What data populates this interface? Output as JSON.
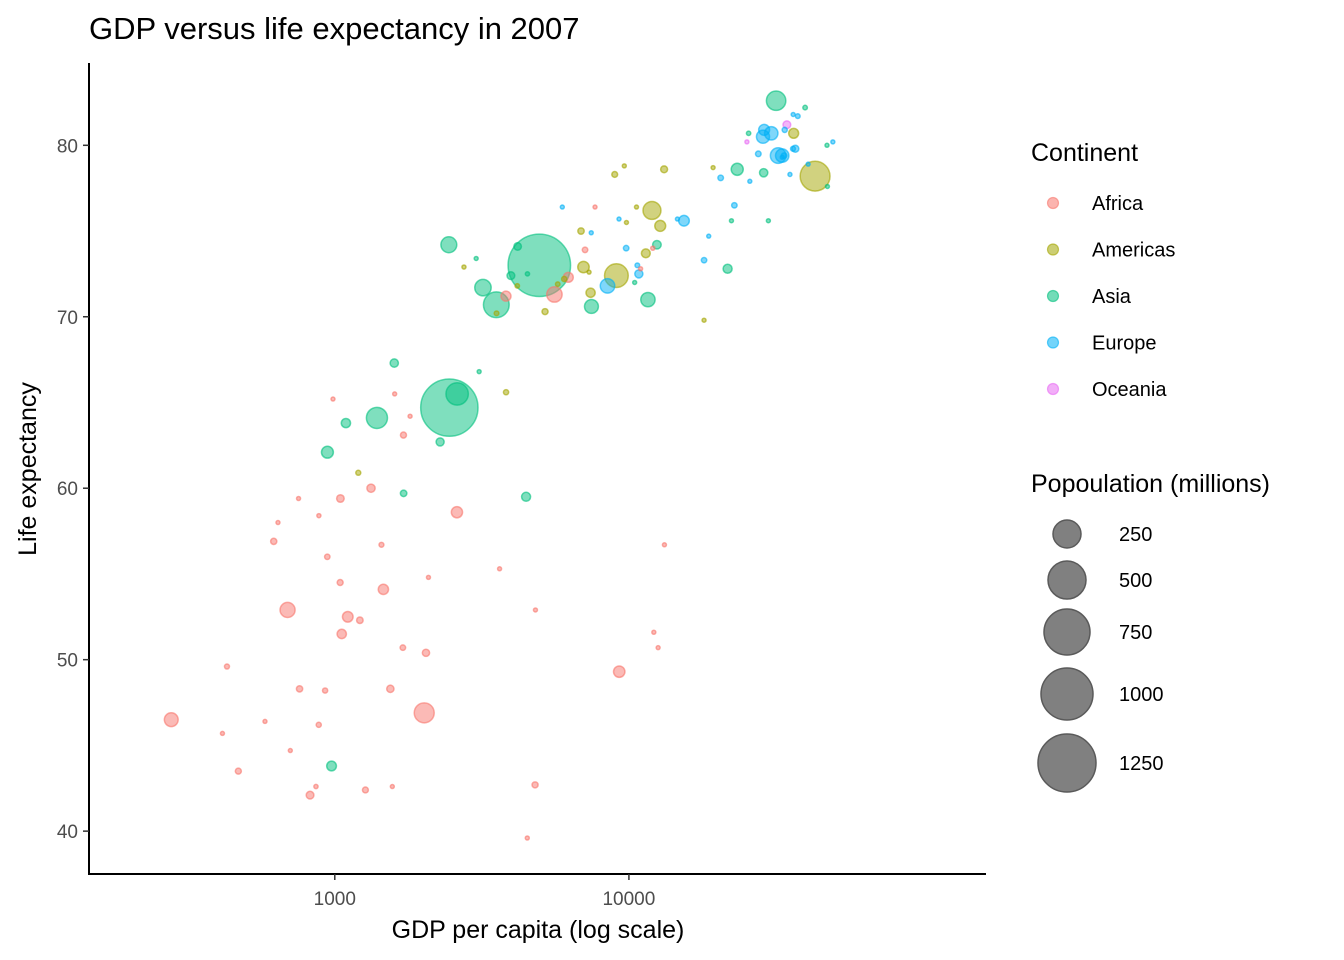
{
  "chart_data": {
    "type": "scatter",
    "title": "GDP versus life expectancy in 2007",
    "xlabel": "GDP per capita (log scale)",
    "ylabel": "Life expectancy",
    "x_scale": "log10",
    "xlim": [
      146,
      163700
    ],
    "ylim": [
      37.5,
      84.8
    ],
    "x_ticks": [
      1000,
      10000
    ],
    "x_tick_labels": [
      "1000",
      "10000"
    ],
    "y_ticks": [
      40,
      50,
      60,
      70,
      80
    ],
    "y_tick_labels": [
      "40",
      "50",
      "60",
      "70",
      "80"
    ],
    "grid": false,
    "legend_position": "right",
    "color_legend": {
      "title": "Continent",
      "entries": [
        {
          "label": "Africa",
          "color": "#F8766D"
        },
        {
          "label": "Americas",
          "color": "#A3A500"
        },
        {
          "label": "Asia",
          "color": "#00BF7D"
        },
        {
          "label": "Europe",
          "color": "#00B0F6"
        },
        {
          "label": "Oceania",
          "color": "#E76BF3"
        }
      ]
    },
    "size_legend": {
      "title": "Popoulation (millions)",
      "entries": [
        250,
        500,
        750,
        1000,
        1250
      ],
      "labels": [
        "250",
        "500",
        "750",
        "1000",
        "1250"
      ]
    },
    "point_alpha": 0.5,
    "fields": [
      "gdp_per_capita",
      "life_expectancy",
      "population_millions",
      "continent"
    ],
    "points": [
      [
        975,
        43.8,
        31.9,
        "Asia"
      ],
      [
        5937,
        76.4,
        3.6,
        "Europe"
      ],
      [
        6223,
        72.3,
        33.3,
        "Africa"
      ],
      [
        4797,
        42.7,
        12.4,
        "Africa"
      ],
      [
        12779,
        75.3,
        40.3,
        "Americas"
      ],
      [
        34435,
        81.2,
        20.4,
        "Oceania"
      ],
      [
        36126,
        79.8,
        8.2,
        "Europe"
      ],
      [
        29796,
        75.6,
        0.7,
        "Asia"
      ],
      [
        1391,
        64.1,
        150.4,
        "Asia"
      ],
      [
        33693,
        79.4,
        10.4,
        "Europe"
      ],
      [
        1441,
        56.7,
        8.1,
        "Africa"
      ],
      [
        3822,
        65.6,
        9.1,
        "Americas"
      ],
      [
        7446,
        74.9,
        4.6,
        "Europe"
      ],
      [
        12570,
        50.7,
        1.6,
        "Africa"
      ],
      [
        9066,
        72.4,
        190.0,
        "Americas"
      ],
      [
        10681,
        73.0,
        7.3,
        "Europe"
      ],
      [
        1217,
        52.3,
        14.3,
        "Africa"
      ],
      [
        430,
        49.6,
        8.4,
        "Africa"
      ],
      [
        1714,
        59.7,
        14.1,
        "Asia"
      ],
      [
        2042,
        50.4,
        17.7,
        "Africa"
      ],
      [
        36319,
        80.7,
        33.4,
        "Americas"
      ],
      [
        706,
        44.7,
        4.4,
        "Africa"
      ],
      [
        1704,
        50.7,
        10.2,
        "Africa"
      ],
      [
        13172,
        78.6,
        16.3,
        "Americas"
      ],
      [
        4959,
        73.0,
        1318.7,
        "Asia"
      ],
      [
        7007,
        72.9,
        44.2,
        "Americas"
      ],
      [
        986,
        65.2,
        0.7,
        "Africa"
      ],
      [
        278,
        46.5,
        64.6,
        "Africa"
      ],
      [
        3633,
        55.3,
        3.8,
        "Africa"
      ],
      [
        9645,
        78.8,
        4.1,
        "Americas"
      ],
      [
        1545,
        48.3,
        18.0,
        "Africa"
      ],
      [
        14619,
        75.7,
        4.5,
        "Europe"
      ],
      [
        8948,
        78.3,
        11.4,
        "Americas"
      ],
      [
        22833,
        76.5,
        10.2,
        "Europe"
      ],
      [
        35278,
        78.3,
        5.5,
        "Europe"
      ],
      [
        2082,
        54.8,
        0.5,
        "Africa"
      ],
      [
        6025,
        72.2,
        9.3,
        "Americas"
      ],
      [
        6873,
        75.0,
        13.8,
        "Americas"
      ],
      [
        5581,
        71.3,
        80.3,
        "Africa"
      ],
      [
        5728,
        71.9,
        6.9,
        "Americas"
      ],
      [
        12154,
        51.6,
        0.6,
        "Africa"
      ],
      [
        641,
        58.0,
        4.9,
        "Africa"
      ],
      [
        691,
        52.9,
        76.5,
        "Africa"
      ],
      [
        33207,
        79.3,
        5.2,
        "Europe"
      ],
      [
        30470,
        80.7,
        61.1,
        "Europe"
      ],
      [
        13206,
        56.7,
        1.5,
        "Africa"
      ],
      [
        753,
        59.4,
        1.7,
        "Africa"
      ],
      [
        32170,
        79.4,
        82.4,
        "Europe"
      ],
      [
        1328,
        60.0,
        22.9,
        "Africa"
      ],
      [
        27538,
        79.5,
        10.7,
        "Europe"
      ],
      [
        5186,
        70.3,
        12.6,
        "Americas"
      ],
      [
        943,
        56.0,
        9.9,
        "Africa"
      ],
      [
        579,
        46.4,
        1.5,
        "Africa"
      ],
      [
        1202,
        60.9,
        8.5,
        "Americas"
      ],
      [
        3548,
        70.2,
        7.5,
        "Americas"
      ],
      [
        39725,
        82.2,
        6.98,
        "Asia"
      ],
      [
        18009,
        73.3,
        9.96,
        "Europe"
      ],
      [
        36181,
        81.8,
        0.3,
        "Europe"
      ],
      [
        2452,
        64.7,
        1110.4,
        "Asia"
      ],
      [
        3541,
        70.7,
        223.5,
        "Asia"
      ],
      [
        11606,
        71.0,
        69.5,
        "Asia"
      ],
      [
        4471,
        59.5,
        27.5,
        "Asia"
      ],
      [
        40676,
        78.9,
        4.1,
        "Europe"
      ],
      [
        25523,
        80.7,
        6.4,
        "Asia"
      ],
      [
        28570,
        80.5,
        58.1,
        "Europe"
      ],
      [
        7321,
        72.6,
        2.8,
        "Americas"
      ],
      [
        31656,
        82.6,
        127.5,
        "Asia"
      ],
      [
        4519,
        72.5,
        6.05,
        "Asia"
      ],
      [
        1463,
        54.1,
        35.6,
        "Africa"
      ],
      [
        1593,
        67.3,
        23.3,
        "Asia"
      ],
      [
        23348,
        78.6,
        49.0,
        "Asia"
      ],
      [
        47307,
        77.6,
        2.5,
        "Asia"
      ],
      [
        10461,
        72.0,
        3.9,
        "Asia"
      ],
      [
        1569,
        42.6,
        2.0,
        "Africa"
      ],
      [
        415,
        45.7,
        3.2,
        "Africa"
      ],
      [
        12057,
        74.0,
        6.0,
        "Africa"
      ],
      [
        1045,
        59.4,
        19.2,
        "Africa"
      ],
      [
        759,
        48.3,
        13.3,
        "Africa"
      ],
      [
        12452,
        74.2,
        24.8,
        "Asia"
      ],
      [
        1043,
        54.5,
        12.0,
        "Africa"
      ],
      [
        1803,
        64.2,
        3.3,
        "Africa"
      ],
      [
        10957,
        72.8,
        1.3,
        "Africa"
      ],
      [
        11978,
        76.2,
        108.7,
        "Americas"
      ],
      [
        3096,
        66.8,
        2.9,
        "Asia"
      ],
      [
        9254,
        75.7,
        0.7,
        "Europe"
      ],
      [
        3820,
        71.2,
        33.8,
        "Africa"
      ],
      [
        824,
        42.1,
        20.0,
        "Africa"
      ],
      [
        944,
        62.1,
        47.8,
        "Asia"
      ],
      [
        4811,
        52.9,
        2.1,
        "Africa"
      ],
      [
        1091,
        63.8,
        28.9,
        "Asia"
      ],
      [
        36798,
        79.8,
        16.6,
        "Europe"
      ],
      [
        25185,
        80.2,
        4.1,
        "Oceania"
      ],
      [
        2749,
        72.9,
        5.7,
        "Americas"
      ],
      [
        620,
        56.9,
        12.9,
        "Africa"
      ],
      [
        2014,
        46.9,
        135.0,
        "Africa"
      ],
      [
        49357,
        80.2,
        4.6,
        "Europe"
      ],
      [
        22316,
        75.6,
        3.2,
        "Asia"
      ],
      [
        2606,
        65.5,
        169.3,
        "Asia"
      ],
      [
        9809,
        75.5,
        3.2,
        "Americas"
      ],
      [
        4173,
        71.8,
        6.7,
        "Americas"
      ],
      [
        7408,
        71.4,
        28.7,
        "Americas"
      ],
      [
        3190,
        71.7,
        91.1,
        "Asia"
      ],
      [
        15390,
        75.6,
        38.5,
        "Europe"
      ],
      [
        20510,
        78.1,
        10.6,
        "Europe"
      ],
      [
        19329,
        78.7,
        3.9,
        "Americas"
      ],
      [
        7670,
        76.4,
        0.8,
        "Africa"
      ],
      [
        10808,
        72.5,
        22.3,
        "Europe"
      ],
      [
        882,
        46.2,
        8.9,
        "Africa"
      ],
      [
        1598,
        65.5,
        0.2,
        "Africa"
      ],
      [
        21655,
        72.8,
        27.6,
        "Asia"
      ],
      [
        1712,
        63.1,
        12.3,
        "Africa"
      ],
      [
        9787,
        74.0,
        10.2,
        "Europe"
      ],
      [
        863,
        42.6,
        6.1,
        "Africa"
      ],
      [
        47143,
        80.0,
        4.6,
        "Asia"
      ],
      [
        18678,
        74.7,
        5.4,
        "Europe"
      ],
      [
        25768,
        77.9,
        2.0,
        "Europe"
      ],
      [
        927,
        48.2,
        9.1,
        "Africa"
      ],
      [
        9270,
        49.3,
        44.0,
        "Africa"
      ],
      [
        28821,
        80.9,
        40.4,
        "Europe"
      ],
      [
        3970,
        72.4,
        20.4,
        "Asia"
      ],
      [
        2602,
        58.6,
        42.3,
        "Africa"
      ],
      [
        4513,
        39.6,
        1.1,
        "Africa"
      ],
      [
        33860,
        80.9,
        9.0,
        "Europe"
      ],
      [
        37506,
        81.7,
        7.6,
        "Europe"
      ],
      [
        4185,
        74.1,
        19.3,
        "Asia"
      ],
      [
        28718,
        78.4,
        23.2,
        "Asia"
      ],
      [
        1107,
        52.5,
        38.1,
        "Africa"
      ],
      [
        7458,
        70.6,
        65.1,
        "Asia"
      ],
      [
        883,
        58.4,
        5.7,
        "Africa"
      ],
      [
        18009,
        69.8,
        1.1,
        "Americas"
      ],
      [
        7093,
        73.9,
        10.3,
        "Africa"
      ],
      [
        8458,
        71.8,
        71.2,
        "Europe"
      ],
      [
        1056,
        51.5,
        29.2,
        "Africa"
      ],
      [
        33203,
        79.4,
        60.8,
        "Europe"
      ],
      [
        42952,
        78.2,
        301.1,
        "Americas"
      ],
      [
        10611,
        76.4,
        3.4,
        "Americas"
      ],
      [
        11416,
        73.7,
        26.1,
        "Americas"
      ],
      [
        2442,
        74.2,
        85.3,
        "Asia"
      ],
      [
        3025,
        73.4,
        4.0,
        "Asia"
      ],
      [
        2281,
        62.7,
        22.2,
        "Asia"
      ],
      [
        1271,
        42.4,
        11.7,
        "Africa"
      ],
      [
        470,
        43.5,
        12.3,
        "Africa"
      ]
    ]
  }
}
